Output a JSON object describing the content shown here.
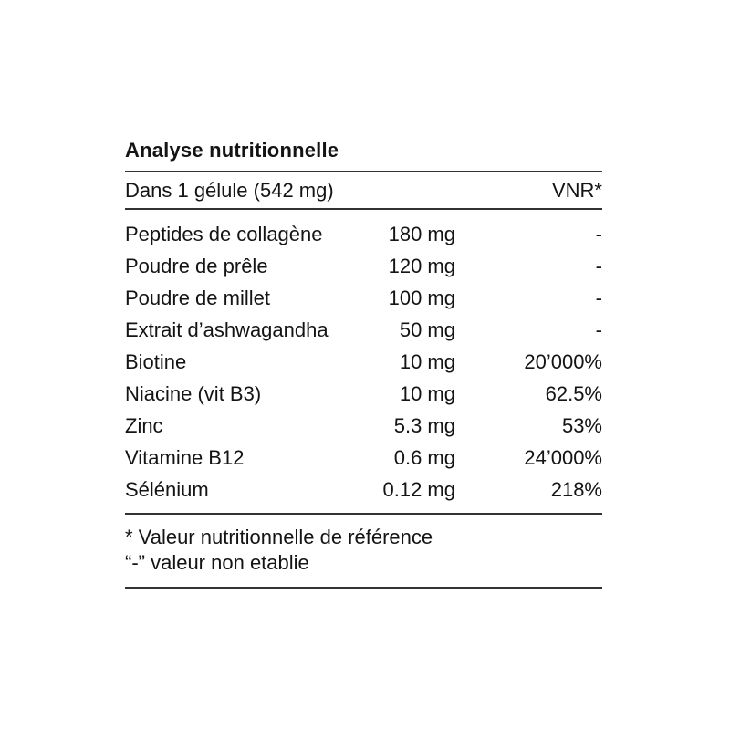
{
  "table": {
    "title": "Analyse nutritionnelle",
    "header": {
      "serving": "Dans 1 gélule (542 mg)",
      "vnr": "VNR*"
    },
    "rows": [
      {
        "name": "Peptides de collagène",
        "amount": "180 mg",
        "vnr": "-"
      },
      {
        "name": "Poudre de prêle",
        "amount": "120 mg",
        "vnr": "-"
      },
      {
        "name": "Poudre de millet",
        "amount": "100 mg",
        "vnr": "-"
      },
      {
        "name": "Extrait d’ashwagandha",
        "amount": "50 mg",
        "vnr": "-"
      },
      {
        "name": "Biotine",
        "amount": "10 mg",
        "vnr": "20’000%"
      },
      {
        "name": "Niacine (vit B3)",
        "amount": "10 mg",
        "vnr": "62.5%"
      },
      {
        "name": "Zinc",
        "amount": "5.3 mg",
        "vnr": "53%"
      },
      {
        "name": "Vitamine B12",
        "amount": "0.6 mg",
        "vnr": "24’000%"
      },
      {
        "name": "Sélénium",
        "amount": "0.12 mg",
        "vnr": "218%"
      }
    ],
    "footnotes": [
      "* Valeur nutritionnelle de référence",
      "“-” valeur non etablie"
    ]
  },
  "colors": {
    "background": "#ffffff",
    "text": "#141414",
    "rule": "#333333"
  }
}
